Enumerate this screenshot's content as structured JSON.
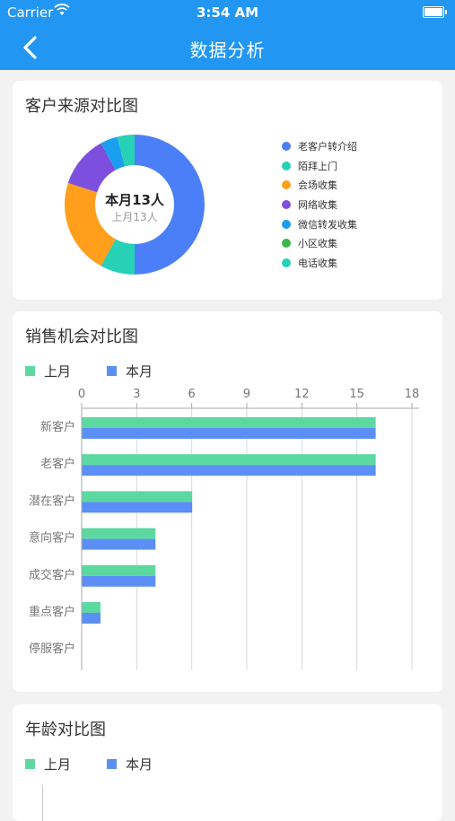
{
  "status_bar": {
    "carrier": "Carrier",
    "time": "3:54 AM"
  },
  "nav": {
    "title": "数据分析",
    "back_icon": "chevron-left-icon"
  },
  "source_chart": {
    "title": "客户来源对比图",
    "center_main": "本月13人",
    "center_sub": "上月13人",
    "legend": [
      {
        "label": "老客户转介绍",
        "color": "#4a7ff7"
      },
      {
        "label": "陌拜上门",
        "color": "#26d1b5"
      },
      {
        "label": "会场收集",
        "color": "#ff9f1c"
      },
      {
        "label": "网络收集",
        "color": "#7d4fde"
      },
      {
        "label": "微信转发收集",
        "color": "#1a9ef0"
      },
      {
        "label": "小区收集",
        "color": "#3cb54a"
      },
      {
        "label": "电话收集",
        "color": "#26d1b5"
      }
    ],
    "slices": [
      {
        "label": "老客户转介绍",
        "value": 0.5
      },
      {
        "label": "陌拜上门",
        "value": 0.08
      },
      {
        "label": "会场收集",
        "value": 0.22
      },
      {
        "label": "网络收集",
        "value": 0.12
      },
      {
        "label": "微信转发收集",
        "value": 0.04
      },
      {
        "label": "小区收集",
        "value": 0.0
      },
      {
        "label": "电话收集",
        "value": 0.04
      }
    ]
  },
  "chart_data": [
    {
      "type": "bar",
      "orientation": "horizontal",
      "title": "销售机会对比图",
      "categories": [
        "新客户",
        "老客户",
        "潜在客户",
        "意向客户",
        "成交客户",
        "重点客户",
        "停服客户"
      ],
      "series": [
        {
          "name": "上月",
          "color": "#5cd9a0",
          "values": [
            16,
            16,
            6,
            4,
            4,
            1,
            0
          ]
        },
        {
          "name": "本月",
          "color": "#5b8ff5",
          "values": [
            16,
            16,
            6,
            4,
            4,
            1,
            0
          ]
        }
      ],
      "xlim": [
        0,
        18
      ],
      "xticks": [
        "0",
        "3",
        "6",
        "9",
        "12",
        "15",
        "18"
      ],
      "grid": true,
      "legend": "top-left"
    }
  ],
  "age_chart": {
    "title": "年龄对比图",
    "legend": [
      {
        "label": "上月",
        "color": "#5cd9a0"
      },
      {
        "label": "本月",
        "color": "#5b8ff5"
      }
    ]
  }
}
